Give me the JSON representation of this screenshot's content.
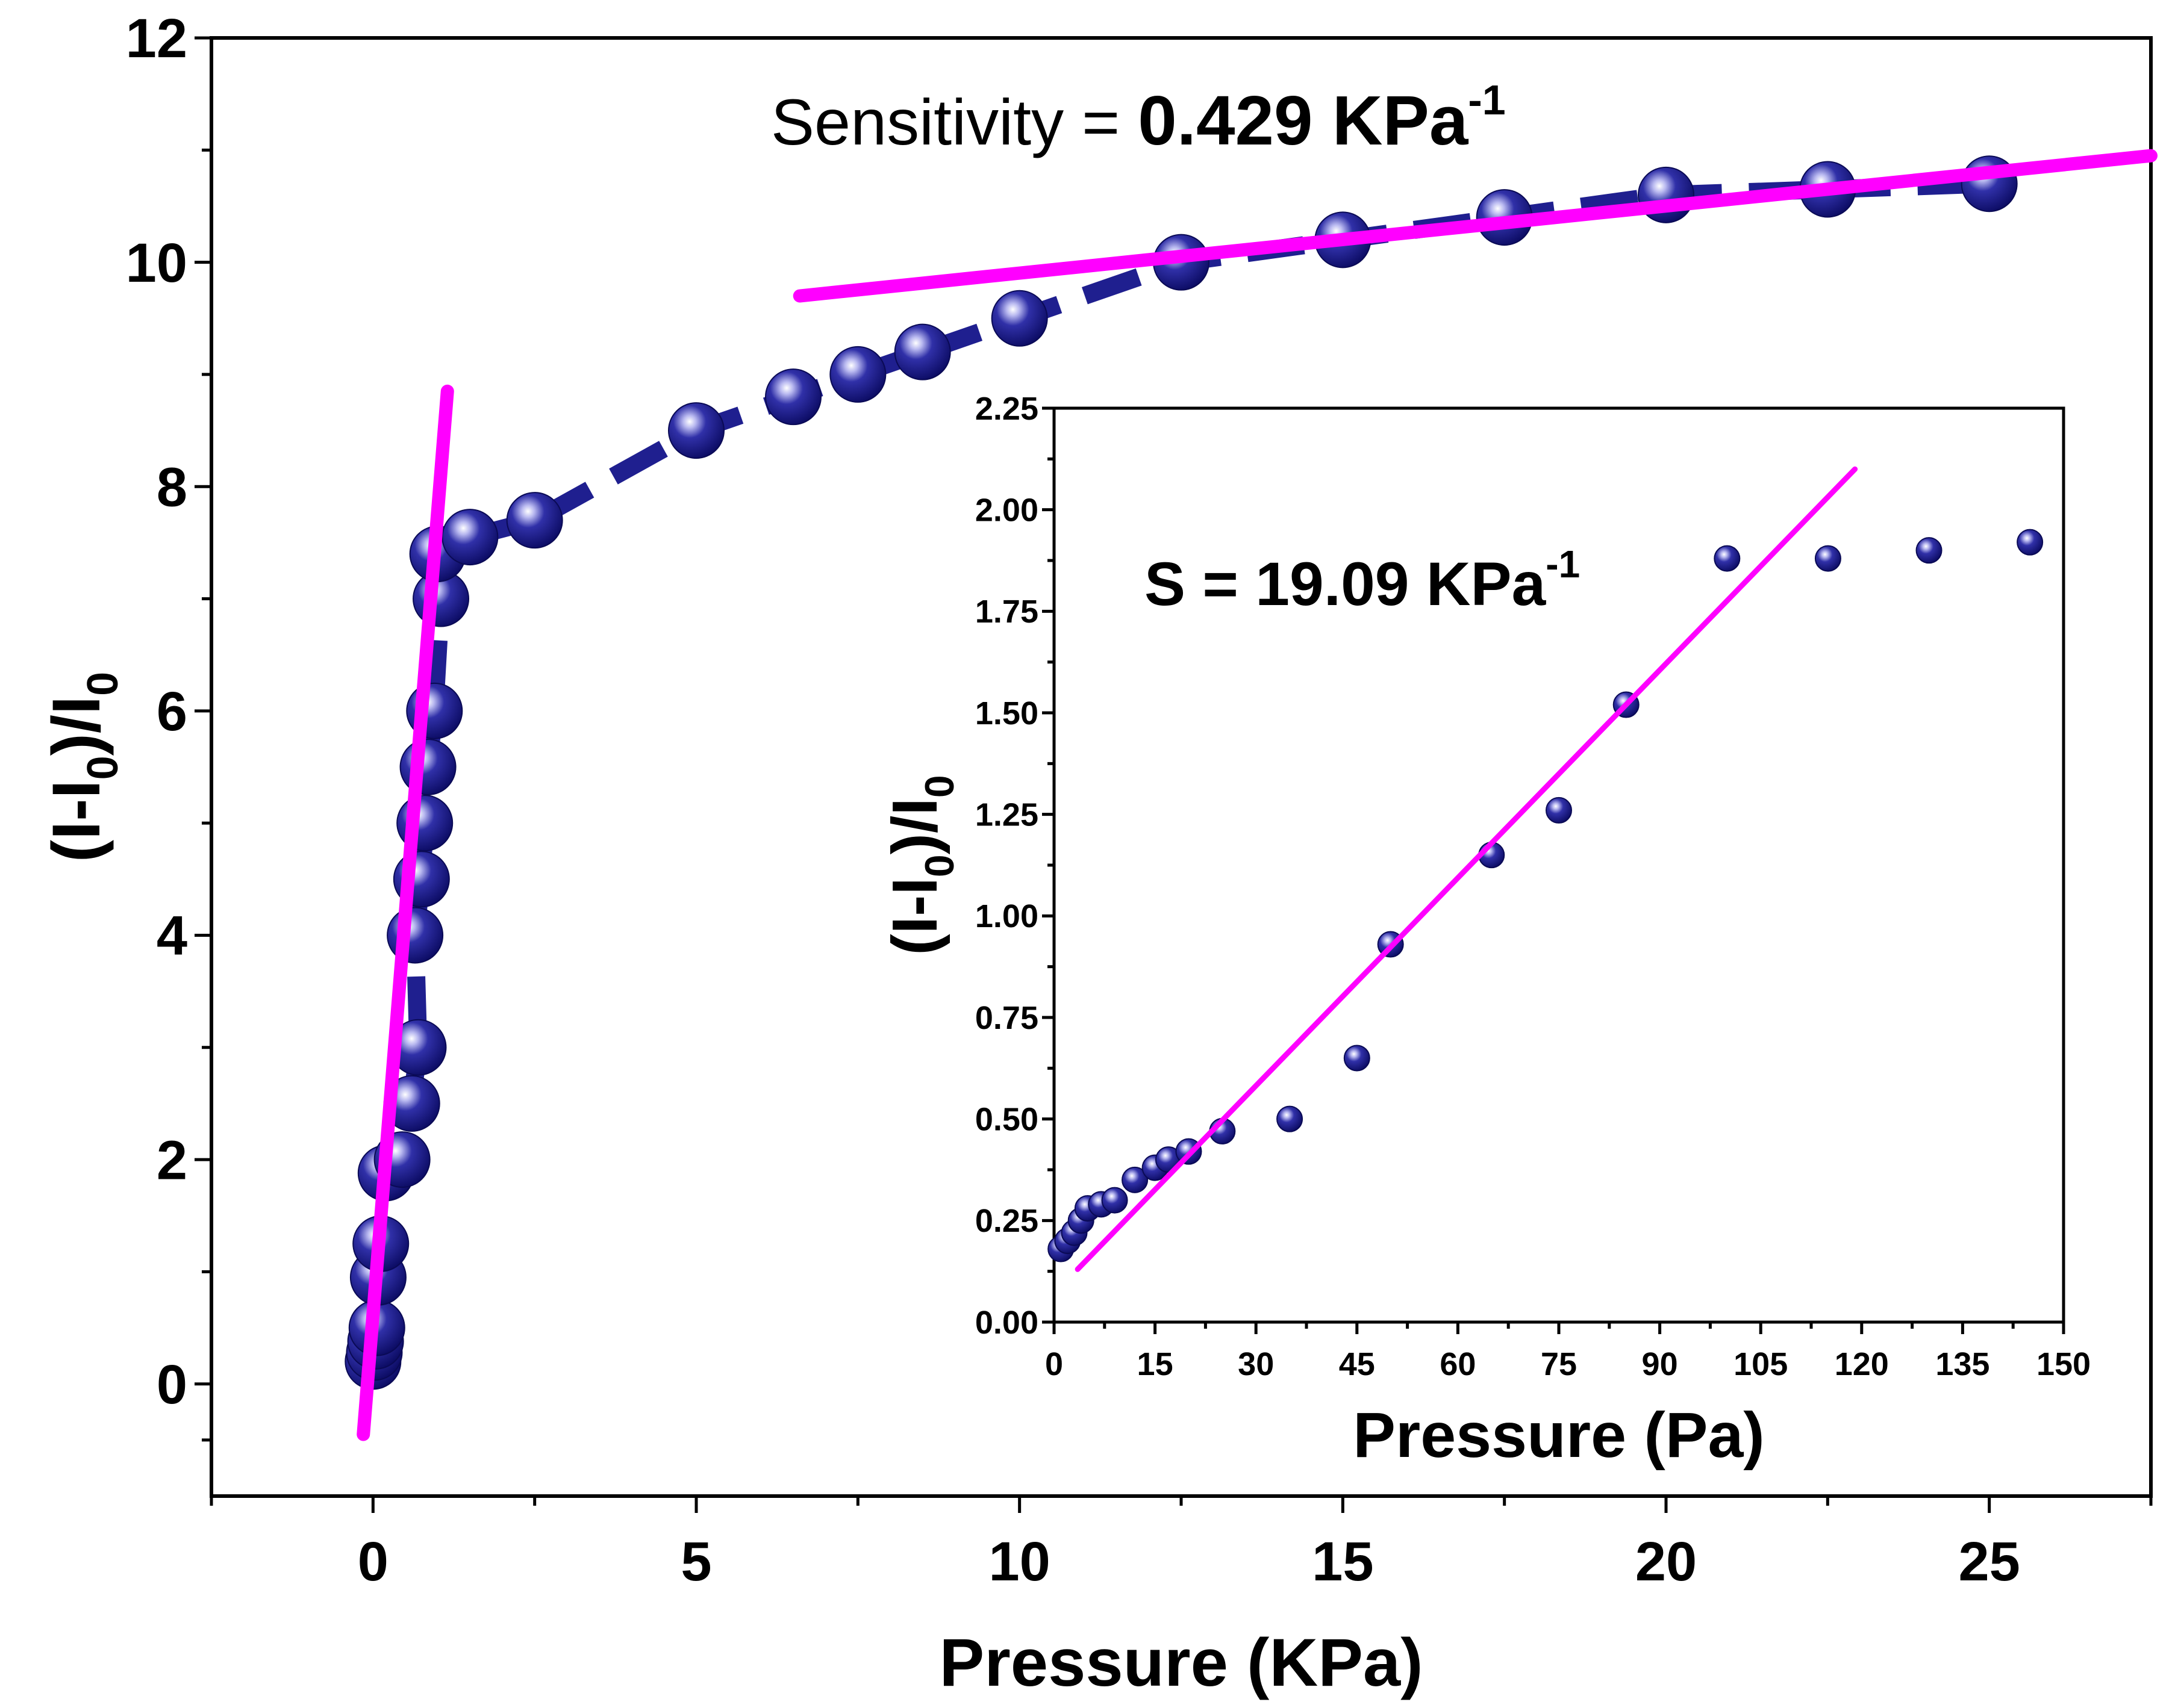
{
  "colors": {
    "marker": "#1a1a8c",
    "marker_highlight": "#d8d8ff",
    "connect_line": "#1f1f8f",
    "fit_line": "#ff00ff",
    "axis": "#000000",
    "background": "#ffffff"
  },
  "chart_data": [
    {
      "id": "main",
      "type": "line",
      "xlabel": "Pressure (KPa)",
      "ylabel": {
        "p1": "(I-I",
        "sub1": "0",
        "p2": ")/I",
        "sub2": "0"
      },
      "xlim": [
        -2.5,
        27.5
      ],
      "ylim": [
        -1,
        12
      ],
      "xticks": [
        0,
        5,
        10,
        15,
        20,
        25
      ],
      "xtick_labels": [
        "0",
        "5",
        "10",
        "15",
        "20",
        "25"
      ],
      "yticks": [
        0,
        2,
        4,
        6,
        8,
        10,
        12
      ],
      "ytick_labels": [
        "0",
        "2",
        "4",
        "6",
        "8",
        "10",
        "12"
      ],
      "annotation": {
        "prefix": "Sensitivity = ",
        "value": "0.429 KPa",
        "sup": "-1"
      },
      "series": [
        {
          "name": "response",
          "style": "markers-dashed",
          "x": [
            0.0,
            0.02,
            0.04,
            0.06,
            0.08,
            0.12,
            0.2,
            0.45,
            0.6,
            0.7,
            0.65,
            0.75,
            0.8,
            0.85,
            0.95,
            1.05,
            1.0,
            1.5,
            2.5,
            5.0,
            6.5,
            7.5,
            8.5,
            10.0,
            12.5,
            15.0,
            17.5,
            20.0,
            22.5,
            25.0
          ],
          "y": [
            0.2,
            0.28,
            0.38,
            0.5,
            0.95,
            1.25,
            1.88,
            2.0,
            2.5,
            3.0,
            4.0,
            4.5,
            5.0,
            5.5,
            6.0,
            7.0,
            7.4,
            7.55,
            7.7,
            8.5,
            8.8,
            9.0,
            9.2,
            9.5,
            10.0,
            10.2,
            10.4,
            10.6,
            10.65,
            10.7
          ]
        }
      ],
      "fits": [
        {
          "name": "low-pressure-fit",
          "x": [
            -0.15,
            1.15
          ],
          "y": [
            -0.45,
            8.85
          ]
        },
        {
          "name": "high-pressure-fit",
          "x": [
            6.6,
            27.5
          ],
          "y": [
            9.7,
            10.95
          ]
        }
      ]
    },
    {
      "id": "inset",
      "type": "scatter",
      "xlabel": "Pressure (Pa)",
      "ylabel": {
        "p1": "(I-I",
        "sub1": "0",
        "p2": ")/I",
        "sub2": "0"
      },
      "xlim": [
        0,
        150
      ],
      "ylim": [
        0,
        2.25
      ],
      "xticks": [
        0,
        15,
        30,
        45,
        60,
        75,
        90,
        105,
        120,
        135,
        150
      ],
      "xtick_labels": [
        "0",
        "15",
        "30",
        "45",
        "60",
        "75",
        "90",
        "105",
        "120",
        "135",
        "150"
      ],
      "yticks": [
        0,
        0.25,
        0.5,
        0.75,
        1.0,
        1.25,
        1.5,
        1.75,
        2.0,
        2.25
      ],
      "ytick_labels": [
        "0.00",
        "0.25",
        "0.50",
        "0.75",
        "1.00",
        "1.25",
        "1.50",
        "1.75",
        "2.00",
        "2.25"
      ],
      "annotation": {
        "prefix": "S = 19.09 KPa",
        "value": "",
        "sup": "-1"
      },
      "series": [
        {
          "name": "low-pressure-response",
          "style": "markers",
          "x": [
            1,
            2,
            3,
            4,
            5,
            7,
            9,
            12,
            15,
            17,
            20,
            25,
            35,
            45,
            50,
            65,
            75,
            85,
            100,
            115,
            130,
            145
          ],
          "y": [
            0.18,
            0.2,
            0.22,
            0.25,
            0.28,
            0.29,
            0.3,
            0.35,
            0.38,
            0.4,
            0.42,
            0.47,
            0.5,
            0.65,
            0.93,
            1.15,
            1.26,
            1.52,
            1.88,
            1.88,
            1.9,
            1.92
          ]
        }
      ],
      "fits": [
        {
          "name": "linear-fit",
          "x": [
            3.5,
            119
          ],
          "y": [
            0.13,
            2.1
          ]
        }
      ]
    }
  ]
}
